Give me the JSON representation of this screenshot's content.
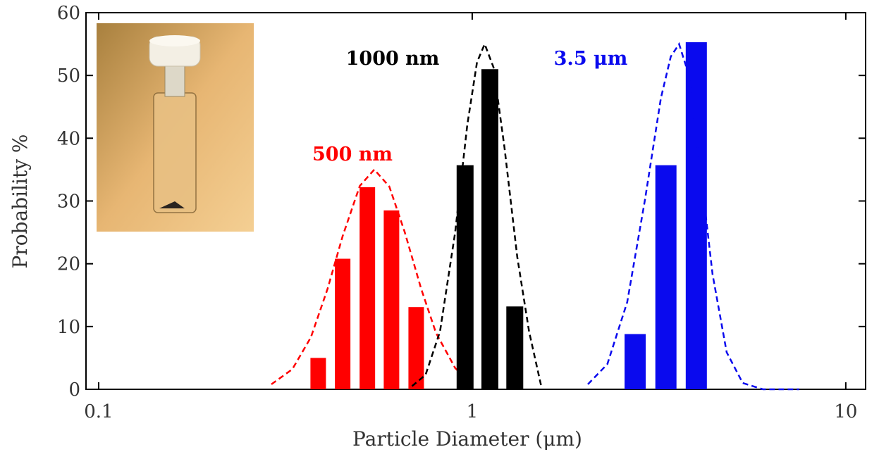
{
  "chart_data": {
    "type": "bar",
    "xlabel": "Particle Diameter (μm)",
    "ylabel": "Probability %",
    "xscale": "log",
    "xlim": [
      0.0925,
      11.3
    ],
    "ylim": [
      0,
      60
    ],
    "xticks": [
      0.1,
      1,
      10
    ],
    "yticks": [
      0,
      10,
      20,
      30,
      40,
      50,
      60
    ],
    "series": [
      {
        "name": "500 nm",
        "color": "#ff0000",
        "x": [
          0.387,
          0.45,
          0.524,
          0.608,
          0.708
        ],
        "values": [
          5,
          20.8,
          32.2,
          28.5,
          13.1
        ],
        "fit": {
          "x": [
            0.29,
            0.33,
            0.37,
            0.41,
            0.45,
            0.5,
            0.547,
            0.6,
            0.66,
            0.73,
            0.8,
            0.9,
            0.95
          ],
          "values": [
            0.8,
            3.2,
            8.3,
            16,
            24.4,
            32.4,
            35,
            32.3,
            25,
            16,
            9,
            3.4,
            2
          ]
        }
      },
      {
        "name": "1000 nm",
        "color": "#000000",
        "x": [
          0.957,
          1.115,
          1.3
        ],
        "values": [
          35.7,
          51,
          13.2
        ],
        "fit": {
          "x": [
            0.69,
            0.75,
            0.82,
            0.9,
            0.97,
            1.03,
            1.08,
            1.14,
            1.22,
            1.32,
            1.42,
            1.53
          ],
          "values": [
            0.5,
            2.3,
            9.2,
            25,
            42.1,
            52.1,
            55,
            51.3,
            38.5,
            21.1,
            9.2,
            0.5
          ]
        }
      },
      {
        "name": "3.5 μm",
        "color": "#0a0aee",
        "x": [
          2.73,
          3.3,
          3.98
        ],
        "values": [
          8.8,
          35.7,
          55.3
        ],
        "fit": {
          "x": [
            2.04,
            2.3,
            2.6,
            2.9,
            3.2,
            3.4,
            3.58,
            3.8,
            4.1,
            4.4,
            4.8,
            5.3,
            6,
            7,
            7.5
          ],
          "values": [
            0.8,
            4,
            13.9,
            30.2,
            46.4,
            53,
            55,
            50.1,
            34,
            18.3,
            5.9,
            1,
            0,
            0,
            0
          ]
        }
      }
    ]
  }
}
